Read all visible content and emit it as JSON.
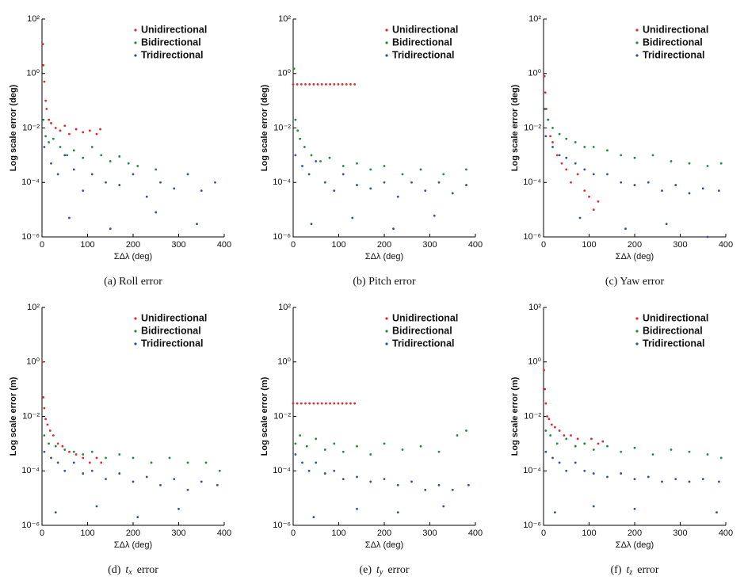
{
  "chart_data": [
    {
      "type": "scatter",
      "caption": "(a) Roll error",
      "ylabel": "Log scale error (deg)",
      "xlabel": "ΣΔλ (deg)",
      "yscale": "log",
      "xlim": [
        0,
        400
      ],
      "xticks": [
        0,
        100,
        200,
        300,
        400
      ],
      "ylim": [
        1e-06,
        100
      ],
      "yticks": [
        {
          "value": 1e-06,
          "label": "10⁻⁶"
        },
        {
          "value": 0.0001,
          "label": "10⁻⁴"
        },
        {
          "value": 0.01,
          "label": "10⁻²"
        },
        {
          "value": 1,
          "label": "10⁰"
        },
        {
          "value": 100,
          "label": "10²"
        }
      ],
      "series": [
        {
          "name": "Unidirectional",
          "color": "#e8262a",
          "x": [
            2,
            3,
            5,
            8,
            10,
            15,
            20,
            30,
            40,
            50,
            60,
            75,
            90,
            105,
            120,
            128
          ],
          "values": [
            12,
            2,
            0.5,
            0.1,
            0.05,
            0.02,
            0.015,
            0.01,
            0.008,
            0.012,
            0.006,
            0.009,
            0.007,
            0.008,
            0.006,
            0.009
          ]
        },
        {
          "name": "Bidirectional",
          "color": "#1f8a3a",
          "x": [
            3,
            8,
            15,
            25,
            40,
            55,
            70,
            90,
            110,
            130,
            150,
            170,
            190,
            210,
            250
          ],
          "values": [
            0.02,
            0.005,
            0.003,
            0.004,
            0.002,
            0.001,
            0.0015,
            0.0008,
            0.002,
            0.001,
            0.0006,
            0.0009,
            0.0005,
            0.0004,
            0.0003
          ]
        },
        {
          "name": "Tridirectional",
          "color": "#2e4fa0",
          "x": [
            5,
            20,
            35,
            50,
            70,
            90,
            110,
            140,
            170,
            200,
            230,
            260,
            290,
            320,
            350,
            380,
            60,
            150,
            250,
            340
          ],
          "values": [
            0.002,
            0.0005,
            0.0002,
            0.001,
            0.0003,
            5e-05,
            0.0002,
            0.0001,
            8e-05,
            0.0002,
            3e-05,
            0.0001,
            6e-05,
            0.0002,
            5e-05,
            0.0001,
            5e-06,
            2e-06,
            8e-06,
            3e-06
          ]
        }
      ]
    },
    {
      "type": "scatter",
      "caption": "(b) Pitch error",
      "ylabel": "Log scale error (deg)",
      "xlabel": "ΣΔλ (deg)",
      "yscale": "log",
      "xlim": [
        0,
        400
      ],
      "xticks": [
        0,
        100,
        200,
        300,
        400
      ],
      "ylim": [
        1e-06,
        100
      ],
      "yticks": [
        {
          "value": 1e-06,
          "label": "10⁻⁶"
        },
        {
          "value": 0.0001,
          "label": "10⁻⁴"
        },
        {
          "value": 0.01,
          "label": "10⁻²"
        },
        {
          "value": 1,
          "label": "10⁰"
        },
        {
          "value": 100,
          "label": "10²"
        }
      ],
      "series": [
        {
          "name": "Unidirectional",
          "color": "#e8262a",
          "x": [
            0,
            9,
            18,
            27,
            36,
            45,
            54,
            63,
            72,
            81,
            90,
            99,
            108,
            117,
            126,
            135
          ],
          "values": [
            0.4,
            0.4,
            0.4,
            0.4,
            0.4,
            0.4,
            0.4,
            0.4,
            0.4,
            0.4,
            0.4,
            0.4,
            0.4,
            0.4,
            0.4,
            0.4
          ]
        },
        {
          "name": "Bidirectional",
          "color": "#1f8a3a",
          "x": [
            2,
            5,
            10,
            15,
            25,
            40,
            60,
            80,
            110,
            140,
            170,
            200,
            240,
            280,
            330,
            380
          ],
          "values": [
            1.5,
            0.02,
            0.008,
            0.004,
            0.002,
            0.001,
            0.0006,
            0.0008,
            0.0004,
            0.0005,
            0.0003,
            0.0004,
            0.0002,
            0.0003,
            0.0002,
            0.0003
          ]
        },
        {
          "name": "Tridirectional",
          "color": "#2e4fa0",
          "x": [
            5,
            20,
            35,
            50,
            70,
            90,
            110,
            140,
            170,
            200,
            230,
            260,
            290,
            320,
            350,
            380,
            40,
            130,
            220,
            310
          ],
          "values": [
            0.001,
            0.0004,
            0.0002,
            0.0006,
            0.0001,
            5e-05,
            0.0002,
            8e-05,
            6e-05,
            0.0001,
            3e-05,
            0.0001,
            5e-05,
            0.0001,
            4e-05,
            8e-05,
            3e-06,
            5e-06,
            2e-06,
            6e-06
          ]
        }
      ]
    },
    {
      "type": "scatter",
      "caption": "(c) Yaw error",
      "ylabel": "Log scale error (deg)",
      "xlabel": "ΣΔλ (deg)",
      "yscale": "log",
      "xlim": [
        0,
        400
      ],
      "xticks": [
        0,
        100,
        200,
        300,
        400
      ],
      "ylim": [
        1e-06,
        100
      ],
      "yticks": [
        {
          "value": 1e-06,
          "label": "10⁻⁶"
        },
        {
          "value": 0.0001,
          "label": "10⁻⁴"
        },
        {
          "value": 0.01,
          "label": "10⁻²"
        },
        {
          "value": 1,
          "label": "10⁰"
        },
        {
          "value": 100,
          "label": "10²"
        }
      ],
      "series": [
        {
          "name": "Unidirectional",
          "color": "#e8262a",
          "x": [
            2,
            4,
            6,
            10,
            15,
            20,
            30,
            40,
            50,
            60,
            75,
            90,
            100,
            110,
            120
          ],
          "values": [
            0.8,
            0.2,
            0.05,
            0.02,
            0.005,
            0.003,
            0.001,
            0.0005,
            0.0003,
            0.0001,
            0.0002,
            5e-05,
            3e-05,
            1e-05,
            2e-05
          ]
        },
        {
          "name": "Bidirectional",
          "color": "#1f8a3a",
          "x": [
            3,
            10,
            20,
            35,
            50,
            70,
            90,
            110,
            140,
            170,
            200,
            240,
            280,
            320,
            360,
            390
          ],
          "values": [
            0.05,
            0.02,
            0.01,
            0.006,
            0.004,
            0.003,
            0.002,
            0.002,
            0.0015,
            0.001,
            0.0008,
            0.001,
            0.0006,
            0.0005,
            0.0004,
            0.0005
          ]
        },
        {
          "name": "Tridirectional",
          "color": "#2e4fa0",
          "x": [
            5,
            20,
            35,
            50,
            70,
            90,
            110,
            140,
            170,
            200,
            230,
            260,
            290,
            320,
            350,
            385,
            80,
            180,
            270,
            360
          ],
          "values": [
            0.005,
            0.002,
            0.001,
            0.0008,
            0.0005,
            0.0003,
            0.0002,
            0.0002,
            0.0001,
            8e-05,
            0.0001,
            5e-05,
            8e-05,
            4e-05,
            6e-05,
            5e-05,
            5e-06,
            2e-06,
            3e-06,
            1e-06
          ]
        }
      ]
    },
    {
      "type": "scatter",
      "caption_label": "(d)",
      "caption_symbol": "t",
      "caption_subscript": "x",
      "caption_text": "error",
      "ylabel": "Log scale error (m)",
      "xlabel": "ΣΔλ (deg)",
      "yscale": "log",
      "xlim": [
        0,
        400
      ],
      "xticks": [
        0,
        100,
        200,
        300,
        400
      ],
      "ylim": [
        1e-06,
        100
      ],
      "yticks": [
        {
          "value": 1e-06,
          "label": "10⁻⁶"
        },
        {
          "value": 0.0001,
          "label": "10⁻⁴"
        },
        {
          "value": 0.01,
          "label": "10⁻²"
        },
        {
          "value": 1,
          "label": "10⁰"
        },
        {
          "value": 100,
          "label": "10²"
        }
      ],
      "series": [
        {
          "name": "Unidirectional",
          "color": "#e8262a",
          "x": [
            1,
            3,
            5,
            8,
            12,
            18,
            25,
            35,
            45,
            60,
            75,
            90,
            105,
            120,
            130
          ],
          "values": [
            1,
            0.05,
            0.02,
            0.008,
            0.005,
            0.003,
            0.002,
            0.001,
            0.0008,
            0.0005,
            0.0004,
            0.0003,
            0.0002,
            0.0003,
            0.0002
          ]
        },
        {
          "name": "Bidirectional",
          "color": "#1f8a3a",
          "x": [
            5,
            15,
            30,
            50,
            70,
            90,
            110,
            140,
            170,
            200,
            240,
            280,
            320,
            360,
            390
          ],
          "values": [
            0.002,
            0.001,
            0.0008,
            0.0006,
            0.0005,
            0.0004,
            0.0005,
            0.0003,
            0.0004,
            0.0003,
            0.0002,
            0.0003,
            0.0002,
            0.0002,
            0.0001
          ]
        },
        {
          "name": "Tridirectional",
          "color": "#2e4fa0",
          "x": [
            5,
            20,
            35,
            50,
            70,
            90,
            110,
            140,
            170,
            200,
            230,
            260,
            290,
            320,
            350,
            385,
            30,
            120,
            210,
            300
          ],
          "values": [
            0.0005,
            0.0003,
            0.0002,
            0.0001,
            0.0002,
            8e-05,
            0.0001,
            5e-05,
            8e-05,
            4e-05,
            6e-05,
            3e-05,
            5e-05,
            2e-05,
            4e-05,
            3e-05,
            3e-06,
            5e-06,
            2e-06,
            4e-06
          ]
        }
      ]
    },
    {
      "type": "scatter",
      "caption_label": "(e)",
      "caption_symbol": "t",
      "caption_subscript": "y",
      "caption_text": "error",
      "ylabel": "Log scale error (m)",
      "xlabel": "ΣΔλ (deg)",
      "yscale": "log",
      "xlim": [
        0,
        400
      ],
      "xticks": [
        0,
        100,
        200,
        300,
        400
      ],
      "ylim": [
        1e-06,
        100
      ],
      "yticks": [
        {
          "value": 1e-06,
          "label": "10⁻⁶"
        },
        {
          "value": 0.0001,
          "label": "10⁻⁴"
        },
        {
          "value": 0.01,
          "label": "10⁻²"
        },
        {
          "value": 1,
          "label": "10⁰"
        },
        {
          "value": 100,
          "label": "10²"
        }
      ],
      "series": [
        {
          "name": "Unidirectional",
          "color": "#e8262a",
          "x": [
            0,
            9,
            18,
            27,
            36,
            45,
            54,
            63,
            72,
            81,
            90,
            99,
            108,
            117,
            126,
            135
          ],
          "values": [
            0.03,
            0.03,
            0.03,
            0.03,
            0.03,
            0.03,
            0.03,
            0.03,
            0.03,
            0.03,
            0.03,
            0.03,
            0.03,
            0.03,
            0.03,
            0.03
          ]
        },
        {
          "name": "Bidirectional",
          "color": "#1f8a3a",
          "x": [
            5,
            15,
            30,
            50,
            70,
            90,
            110,
            140,
            170,
            200,
            240,
            280,
            320,
            360,
            380
          ],
          "values": [
            0.001,
            0.002,
            0.0008,
            0.0015,
            0.0006,
            0.001,
            0.0005,
            0.0008,
            0.0004,
            0.001,
            0.0006,
            0.0008,
            0.0005,
            0.002,
            0.003
          ]
        },
        {
          "name": "Tridirectional",
          "color": "#2e4fa0",
          "x": [
            5,
            20,
            35,
            50,
            70,
            90,
            110,
            140,
            170,
            200,
            230,
            260,
            290,
            320,
            350,
            385,
            45,
            140,
            230,
            330
          ],
          "values": [
            0.0004,
            0.0002,
            0.0001,
            0.0002,
            8e-05,
            0.0001,
            5e-05,
            6e-05,
            4e-05,
            5e-05,
            3e-05,
            4e-05,
            2e-05,
            3e-05,
            2e-05,
            3e-05,
            2e-06,
            4e-06,
            3e-06,
            5e-06
          ]
        }
      ]
    },
    {
      "type": "scatter",
      "caption_label": "(f)",
      "caption_symbol": "t",
      "caption_subscript": "z",
      "caption_text": "error",
      "ylabel": "Log scale error (m)",
      "xlabel": "ΣΔλ (deg)",
      "yscale": "log",
      "xlim": [
        0,
        400
      ],
      "xticks": [
        0,
        100,
        200,
        300,
        400
      ],
      "ylim": [
        1e-06,
        100
      ],
      "yticks": [
        {
          "value": 1e-06,
          "label": "10⁻⁶"
        },
        {
          "value": 0.0001,
          "label": "10⁻⁴"
        },
        {
          "value": 0.01,
          "label": "10⁻²"
        },
        {
          "value": 1,
          "label": "10⁰"
        },
        {
          "value": 100,
          "label": "10²"
        }
      ],
      "series": [
        {
          "name": "Unidirectional",
          "color": "#e8262a",
          "x": [
            1,
            3,
            5,
            8,
            12,
            18,
            25,
            35,
            45,
            60,
            75,
            90,
            105,
            120,
            130
          ],
          "values": [
            0.5,
            0.1,
            0.03,
            0.01,
            0.008,
            0.005,
            0.004,
            0.003,
            0.002,
            0.002,
            0.0015,
            0.001,
            0.0015,
            0.001,
            0.0012
          ]
        },
        {
          "name": "Bidirectional",
          "color": "#1f8a3a",
          "x": [
            5,
            15,
            30,
            50,
            70,
            90,
            110,
            140,
            170,
            200,
            240,
            280,
            320,
            360,
            390
          ],
          "values": [
            0.003,
            0.002,
            0.001,
            0.0015,
            0.0008,
            0.001,
            0.0006,
            0.0008,
            0.0005,
            0.0007,
            0.0004,
            0.0006,
            0.0005,
            0.0004,
            0.0003
          ]
        },
        {
          "name": "Tridirectional",
          "color": "#2e4fa0",
          "x": [
            5,
            20,
            35,
            50,
            70,
            90,
            110,
            140,
            170,
            200,
            230,
            260,
            290,
            320,
            350,
            385,
            25,
            110,
            200,
            380
          ],
          "values": [
            0.0005,
            0.0003,
            0.0002,
            0.0001,
            0.0002,
            0.0001,
            8e-05,
            6e-05,
            8e-05,
            5e-05,
            6e-05,
            4e-05,
            5e-05,
            4e-05,
            5e-05,
            4e-05,
            3e-06,
            5e-06,
            4e-06,
            3e-06
          ]
        }
      ]
    }
  ]
}
